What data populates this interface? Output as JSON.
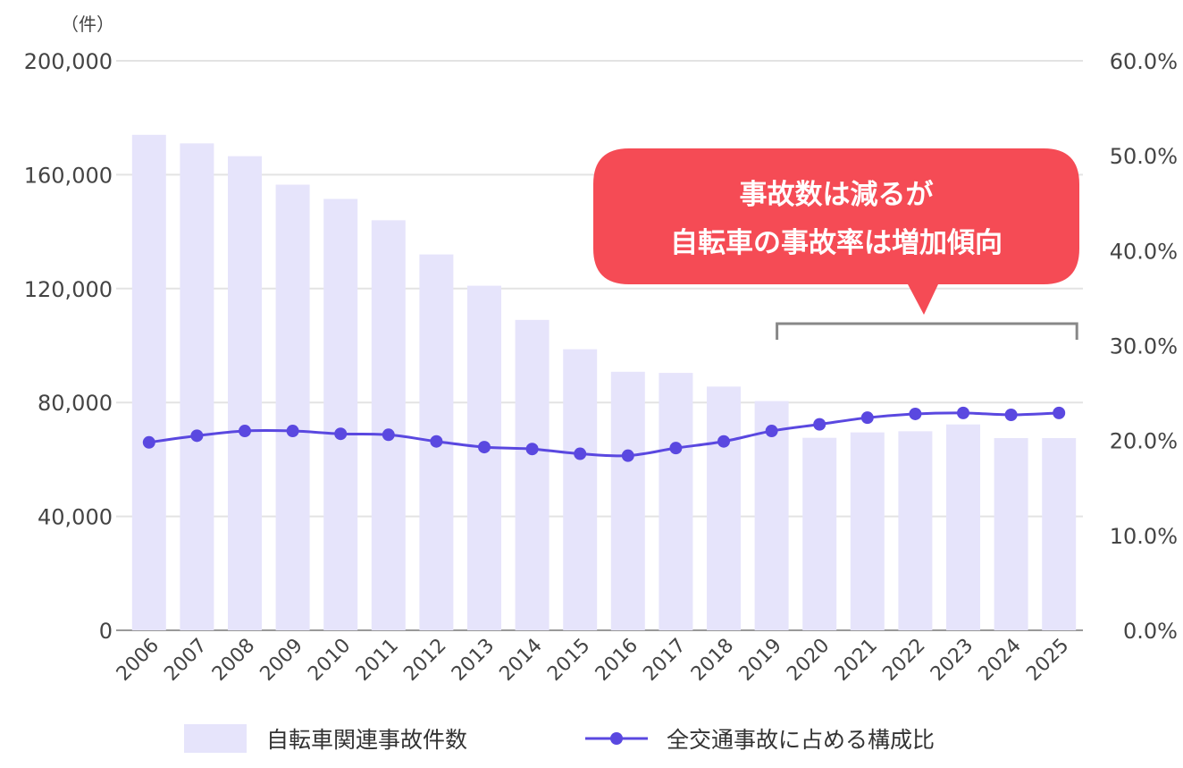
{
  "chart_data": {
    "type": "bar",
    "unit_label": "（件）",
    "categories": [
      "2006",
      "2007",
      "2008",
      "2009",
      "2010",
      "2011",
      "2012",
      "2013",
      "2014",
      "2015",
      "2016",
      "2017",
      "2018",
      "2019",
      "2020",
      "2021",
      "2022",
      "2023",
      "2024",
      "2025"
    ],
    "series": [
      {
        "name": "自転車関連事故件数",
        "type": "bar",
        "axis": "left",
        "color": "#e6e4fb",
        "values": [
          174000,
          171000,
          166500,
          156500,
          151500,
          144000,
          132000,
          121000,
          109000,
          98700,
          90800,
          90400,
          85600,
          80500,
          67600,
          69500,
          69900,
          72300,
          67500,
          67500
        ]
      },
      {
        "name": "全交通事故に占める構成比",
        "type": "line",
        "axis": "right",
        "color": "#5a48e0",
        "values": [
          19.8,
          20.5,
          21.0,
          21.0,
          20.7,
          20.6,
          19.9,
          19.3,
          19.1,
          18.6,
          18.4,
          19.2,
          19.9,
          21.0,
          21.7,
          22.4,
          22.8,
          22.9,
          22.7,
          22.9
        ]
      }
    ],
    "y_left": {
      "ylim": [
        0,
        200000
      ],
      "ticks": [
        "0",
        "40,000",
        "80,000",
        "120,000",
        "160,000",
        "200,000"
      ]
    },
    "y_right": {
      "ylim": [
        0,
        60
      ],
      "ticks": [
        "0.0%",
        "10.0%",
        "20.0%",
        "30.0%",
        "40.0%",
        "50.0%",
        "60.0%"
      ]
    },
    "grid": true,
    "legend_placement": "bottom",
    "annotation": {
      "lines": [
        "事故数は減るが",
        "自転車の事故率は増加傾向"
      ],
      "color": "#f54b55",
      "bracket_from": "2019",
      "bracket_to": "2025"
    }
  }
}
